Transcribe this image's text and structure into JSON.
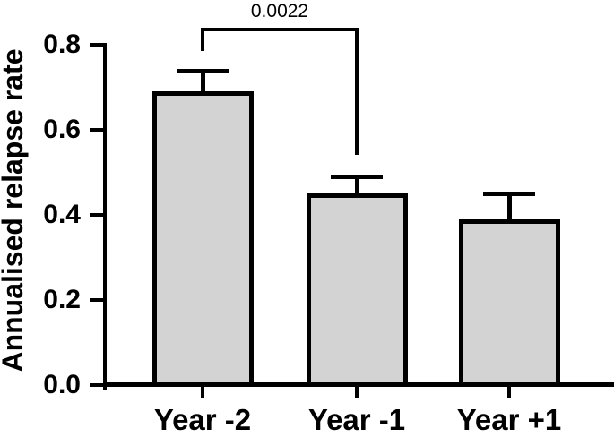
{
  "figure": {
    "background": "#ffffff",
    "line_color": "#000000"
  },
  "chart_data": {
    "type": "bar",
    "title": "",
    "xlabel": "",
    "ylabel": "Annualised relapse rate",
    "categories": [
      "Year -2",
      "Year -1",
      "Year +1"
    ],
    "values": [
      0.69,
      0.45,
      0.39
    ],
    "error_tops": [
      0.74,
      0.49,
      0.45
    ],
    "error_style": "upper whisker with cap (SEM)",
    "ylim": [
      0,
      0.8
    ],
    "yticks": [
      0.0,
      0.2,
      0.4,
      0.6,
      0.8
    ],
    "ytick_labels": [
      "0.0",
      "0.2",
      "0.4",
      "0.6",
      "0.8"
    ],
    "grid": false,
    "legend": null,
    "bar_fill": "#d3d3d3",
    "bar_border": "#000000",
    "annotation": {
      "label": "0.0022",
      "from": "Year -2",
      "to": "Year -1",
      "meaning": "p-value comparison bracket"
    }
  }
}
